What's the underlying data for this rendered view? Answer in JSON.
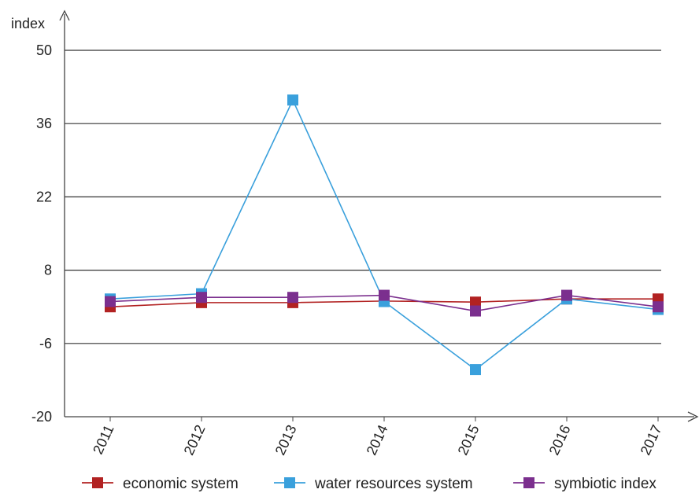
{
  "chart_data": {
    "type": "line",
    "ylabel": "index",
    "categories": [
      "2011",
      "2012",
      "2013",
      "2014",
      "2015",
      "2016",
      "2017"
    ],
    "yticks": [
      50,
      36,
      22,
      8,
      -6,
      -20
    ],
    "ylim": [
      -20,
      50
    ],
    "grid": true,
    "legend_position": "bottom",
    "series": [
      {
        "name": "economic system",
        "color": "#b22222",
        "values": [
          1.0,
          1.8,
          1.8,
          2.1,
          1.9,
          2.5,
          2.5
        ]
      },
      {
        "name": "water resources system",
        "color": "#3aa0dc",
        "values": [
          2.5,
          3.5,
          40.5,
          2.0,
          -11.0,
          2.5,
          0.5
        ]
      },
      {
        "name": "symbiotic index",
        "color": "#7b2f8e",
        "values": [
          2.0,
          2.8,
          2.8,
          3.2,
          0.2,
          3.2,
          1.0
        ]
      }
    ]
  }
}
